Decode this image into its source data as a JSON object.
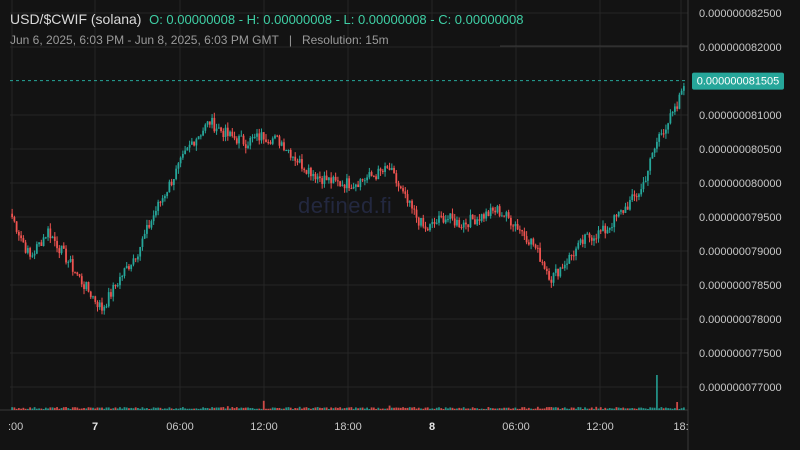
{
  "header": {
    "pair": "USD/$CWIF (solana)",
    "ohlc": "O: 0.00000008 - H: 0.00000008 - L: 0.00000008 - C: 0.00000008",
    "range": "Jun 6, 2025, 6:03 PM - Jun 8, 2025, 6:03 PM GMT",
    "separator": "|",
    "resolution": "Resolution: 15m"
  },
  "watermark": "defined.fi",
  "chart_data": {
    "type": "candlestick",
    "y_range": [
      7.67e-08,
      8.2575e-08
    ],
    "y_ticks": [
      "0.000000082500",
      "0.000000082000",
      "0.000000081000",
      "0.000000080500",
      "0.000000080000",
      "0.000000079500",
      "0.000000079000",
      "0.000000078500",
      "0.000000078000",
      "0.000000077500",
      "0.000000077000"
    ],
    "x_ticks": [
      ":00",
      "7",
      "06:00",
      "12:00",
      "18:00",
      "8",
      "06:00",
      "12:00",
      "18:"
    ],
    "last_price": "0.000000081505",
    "colors": {
      "up": "#26a69a",
      "down": "#ef5350",
      "price_label": "#26a69a",
      "text": "#c8c8c8",
      "grid": "#262626"
    },
    "anchors": [
      [
        0,
        7.95e-08
      ],
      [
        8,
        7.89e-08
      ],
      [
        16,
        7.93e-08
      ],
      [
        24,
        7.89e-08
      ],
      [
        32,
        7.85e-08
      ],
      [
        40,
        7.815e-08
      ],
      [
        48,
        7.86e-08
      ],
      [
        56,
        7.9e-08
      ],
      [
        64,
        7.96e-08
      ],
      [
        72,
        8.01e-08
      ],
      [
        80,
        8.06e-08
      ],
      [
        88,
        8.09e-08
      ],
      [
        96,
        8.07e-08
      ],
      [
        104,
        8.06e-08
      ],
      [
        112,
        8.07e-08
      ],
      [
        120,
        8.06e-08
      ],
      [
        128,
        8.03e-08
      ],
      [
        136,
        8.01e-08
      ],
      [
        144,
        8e-08
      ],
      [
        152,
        8e-08
      ],
      [
        160,
        8.01e-08
      ],
      [
        168,
        8.02e-08
      ],
      [
        176,
        7.97e-08
      ],
      [
        184,
        7.93e-08
      ],
      [
        192,
        7.95e-08
      ],
      [
        200,
        7.94e-08
      ],
      [
        208,
        7.95e-08
      ],
      [
        216,
        7.96e-08
      ],
      [
        224,
        7.94e-08
      ],
      [
        232,
        7.91e-08
      ],
      [
        240,
        7.86e-08
      ],
      [
        248,
        7.89e-08
      ],
      [
        256,
        7.92e-08
      ],
      [
        264,
        7.93e-08
      ],
      [
        272,
        7.96e-08
      ],
      [
        280,
        7.99e-08
      ],
      [
        288,
        8.07e-08
      ],
      [
        296,
        8.11e-08
      ],
      [
        299,
        8.15e-08
      ]
    ],
    "volume_spikes": [
      [
        96,
        0.03
      ],
      [
        112,
        0.12
      ],
      [
        128,
        0.02
      ],
      [
        168,
        0.04
      ],
      [
        234,
        0.02
      ],
      [
        260,
        0.02
      ],
      [
        287,
        0.55
      ],
      [
        296,
        0.1
      ]
    ]
  }
}
